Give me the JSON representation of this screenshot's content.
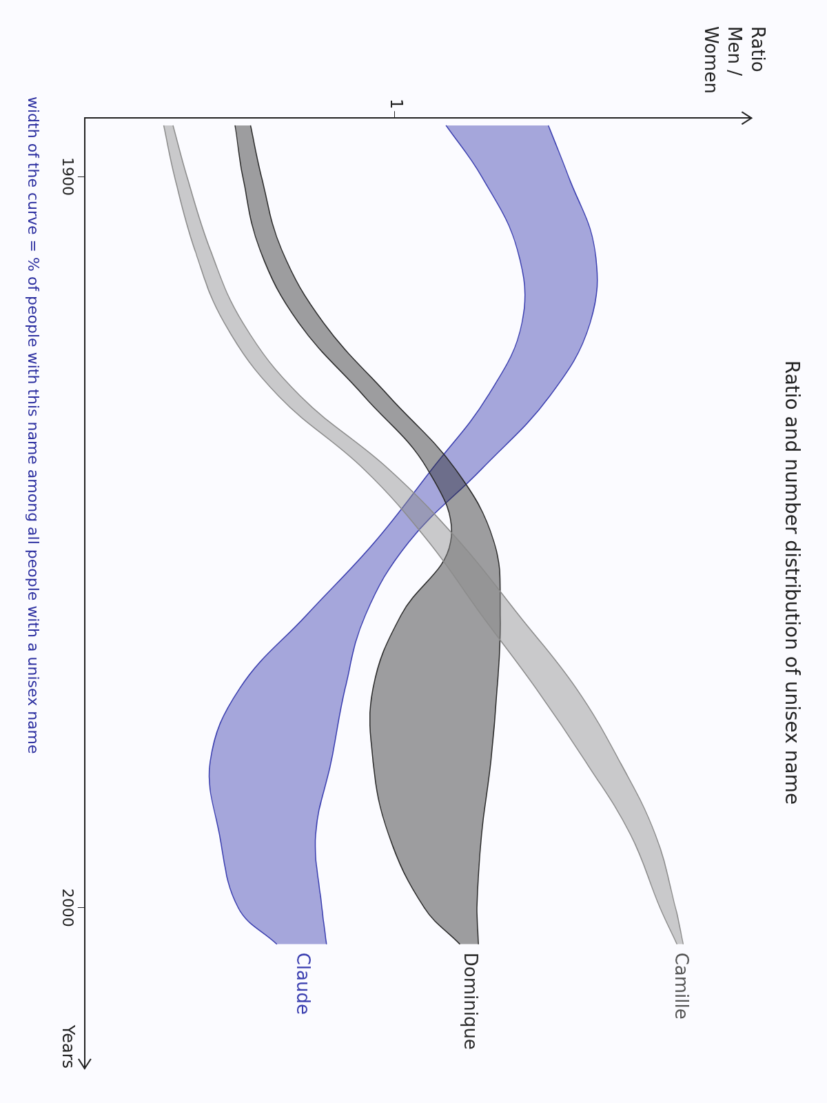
{
  "chart_data": {
    "type": "line",
    "title": "Ratio and number distribution of unisex name",
    "x_label": "Years",
    "y_label": "Ratio Men / Women",
    "note": "width of the curve = % of people with this name among all people with a unisex name",
    "x": [
      1893,
      1900,
      1910,
      1920,
      1930,
      1940,
      1950,
      1960,
      1970,
      1980,
      1990,
      2000,
      2005
    ],
    "xlim": [
      1892,
      2022
    ],
    "xticks": [
      1900,
      2000
    ],
    "ylim": [
      0,
      2.15
    ],
    "yticks": [
      1
    ],
    "grid": false,
    "series": [
      {
        "name": "Camille",
        "color": "#8c8c8c",
        "values": [
          0.27,
          0.31,
          0.38,
          0.48,
          0.66,
          0.94,
          1.16,
          1.34,
          1.52,
          1.67,
          1.8,
          1.88,
          1.92
        ],
        "curve_width": [
          0.03,
          0.04,
          0.05,
          0.06,
          0.07,
          0.08,
          0.1,
          0.12,
          0.13,
          0.11,
          0.08,
          0.05,
          0.02
        ]
      },
      {
        "name": "Dominique",
        "color": "#2b2b2b",
        "values": [
          0.51,
          0.54,
          0.6,
          0.73,
          0.94,
          1.15,
          1.25,
          1.18,
          1.13,
          1.12,
          1.13,
          1.18,
          1.24
        ],
        "curve_width": [
          0.05,
          0.06,
          0.07,
          0.08,
          0.08,
          0.09,
          0.14,
          0.32,
          0.4,
          0.38,
          0.3,
          0.17,
          0.06
        ]
      },
      {
        "name": "Claude",
        "color": "#3b3fb0",
        "values": [
          1.33,
          1.42,
          1.52,
          1.52,
          1.4,
          1.2,
          0.99,
          0.81,
          0.67,
          0.6,
          0.59,
          0.63,
          0.7
        ],
        "curve_width": [
          0.33,
          0.28,
          0.25,
          0.22,
          0.2,
          0.16,
          0.11,
          0.19,
          0.34,
          0.39,
          0.31,
          0.27,
          0.16
        ]
      }
    ]
  }
}
